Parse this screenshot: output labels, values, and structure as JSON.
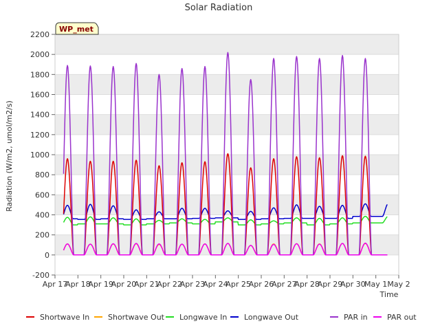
{
  "chart_data": {
    "type": "line",
    "title": "Solar Radiation",
    "xlabel": "Time",
    "ylabel": "Radiation (W/m2, umol/m2/s)",
    "site_label": "WP_met",
    "ylim": [
      -200,
      2200
    ],
    "yticks": [
      -200,
      0,
      200,
      400,
      600,
      800,
      1000,
      1200,
      1400,
      1600,
      1800,
      2000,
      2200
    ],
    "xlim": [
      "2024-04-17",
      "2024-05-02"
    ],
    "xtick_labels": [
      "Apr 17",
      "Apr 18",
      "Apr 19",
      "Apr 20",
      "Apr 21",
      "Apr 22",
      "Apr 23",
      "Apr 24",
      "Apr 25",
      "Apr 26",
      "Apr 27",
      "Apr 28",
      "Apr 29",
      "Apr 30",
      "May 1",
      "May 2"
    ],
    "data_range": [
      "2024-04-17T09:00",
      "2024-05-01T12:00"
    ],
    "grid": "horizontal bands",
    "legend_position": "bottom",
    "days": [
      "2024-04-17",
      "2024-04-18",
      "2024-04-19",
      "2024-04-20",
      "2024-04-21",
      "2024-04-22",
      "2024-04-23",
      "2024-04-24",
      "2024-04-25",
      "2024-04-26",
      "2024-04-27",
      "2024-04-28",
      "2024-04-29",
      "2024-04-30"
    ],
    "daily_peak_hour": 13,
    "series": [
      {
        "name": "Shortwave In",
        "color": "#dd0000",
        "daily_peak": [
          960,
          935,
          935,
          945,
          890,
          920,
          930,
          1010,
          870,
          960,
          980,
          970,
          990,
          985
        ],
        "night": 0
      },
      {
        "name": "Shortwave Out",
        "color": "#ffa500",
        "daily_peak": [
          110,
          108,
          110,
          112,
          105,
          108,
          110,
          115,
          95,
          110,
          112,
          110,
          115,
          115
        ],
        "night": 0
      },
      {
        "name": "Longwave In",
        "color": "#22dd22",
        "daily_peak": [
          375,
          380,
          370,
          360,
          345,
          360,
          355,
          370,
          350,
          340,
          370,
          365,
          370,
          385
        ],
        "daily_min": [
          300,
          310,
          310,
          300,
          310,
          320,
          310,
          330,
          300,
          310,
          320,
          300,
          310,
          320
        ]
      },
      {
        "name": "Longwave Out",
        "color": "#0000cc",
        "daily_peak": [
          495,
          505,
          490,
          450,
          430,
          465,
          465,
          440,
          435,
          470,
          500,
          485,
          495,
          510
        ],
        "daily_min": [
          360,
          355,
          360,
          355,
          360,
          360,
          365,
          370,
          355,
          360,
          365,
          365,
          365,
          385
        ]
      },
      {
        "name": "PAR in",
        "color": "#9932cc",
        "daily_peak": [
          1890,
          1885,
          1880,
          1910,
          1800,
          1860,
          1880,
          2020,
          1750,
          1960,
          1980,
          1960,
          1990,
          1960
        ],
        "night": 0
      },
      {
        "name": "PAR out",
        "color": "#ee00ee",
        "daily_peak": [
          110,
          108,
          112,
          115,
          110,
          108,
          110,
          115,
          95,
          105,
          112,
          108,
          115,
          118
        ],
        "night": 0
      }
    ]
  }
}
